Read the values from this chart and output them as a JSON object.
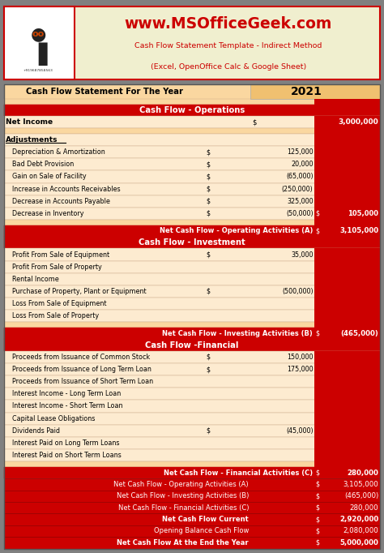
{
  "header_bg": "#808080",
  "header_logo_bg": "#ffffff",
  "website": "www.MSOfficeGeek.com",
  "subtitle1": "Cash Flow Statement Template - Indirect Method",
  "subtitle2": "(Excel, OpenOffice Calc & Google Sheet)",
  "phone": "+919687858563",
  "section_red": "#CC0000",
  "row_light": "#FAD7A0",
  "row_lighter": "#FDEBD0",
  "rows": [
    {
      "type": "title",
      "label": "Cash Flow Statement For The Year",
      "year": "2021"
    },
    {
      "type": "blank_light"
    },
    {
      "type": "section",
      "label": "Cash Flow - Operations"
    },
    {
      "type": "data",
      "label": "Net Income",
      "col1": "",
      "col2": "$",
      "col3": "3,000,000",
      "bold": true
    },
    {
      "type": "blank_light"
    },
    {
      "type": "header",
      "label": "Adjustments",
      "bold": true
    },
    {
      "type": "data_indent",
      "label": "Depreciation & Amortization",
      "col1": "$",
      "col2": "125,000",
      "col3": ""
    },
    {
      "type": "data_indent",
      "label": "Bad Debt Provision",
      "col1": "$",
      "col2": "20,000",
      "col3": ""
    },
    {
      "type": "data_indent",
      "label": "Gain on Sale of Facility",
      "col1": "$",
      "col2": "(65,000)",
      "col3": ""
    },
    {
      "type": "data_indent",
      "label": "Increase in Accounts Receivables",
      "col1": "$",
      "col2": "(250,000)",
      "col3": ""
    },
    {
      "type": "data_indent",
      "label": "Decrease in Accounts Payable",
      "col1": "$",
      "col2": "325,000",
      "col3": ""
    },
    {
      "type": "data_indent_last",
      "label": "Decrease in Inventory",
      "col1": "$",
      "col2": "(50,000)",
      "col3_dollar": "$",
      "col3": "105,000"
    },
    {
      "type": "blank_light"
    },
    {
      "type": "net_row",
      "label": "Net Cash Flow - Operating Activities (A)",
      "dollar": "$",
      "value": "3,105,000"
    },
    {
      "type": "section",
      "label": "Cash Flow - Investment"
    },
    {
      "type": "data_indent",
      "label": "Profit From Sale of Equipment",
      "col1": "$",
      "col2": "35,000",
      "col3": ""
    },
    {
      "type": "data_indent",
      "label": "Profit From Sale of Property",
      "col1": "",
      "col2": "",
      "col3": ""
    },
    {
      "type": "data_indent",
      "label": "Rental Income",
      "col1": "",
      "col2": "",
      "col3": ""
    },
    {
      "type": "data_indent",
      "label": "Purchase of Property, Plant or Equipment",
      "col1": "$",
      "col2": "(500,000)",
      "col3": ""
    },
    {
      "type": "data_indent",
      "label": "Loss From Sale of Equipment",
      "col1": "",
      "col2": "",
      "col3": ""
    },
    {
      "type": "data_indent",
      "label": "Loss From Sale of Property",
      "col1": "",
      "col2": "",
      "col3": ""
    },
    {
      "type": "blank_light"
    },
    {
      "type": "net_row",
      "label": "Net Cash Flow - Investing Activities (B)",
      "dollar": "$",
      "value": "(465,000)"
    },
    {
      "type": "section",
      "label": "Cash Flow -Financial"
    },
    {
      "type": "data_indent",
      "label": "Proceeds from Issuance of Common Stock",
      "col1": "$",
      "col2": "150,000",
      "col3": ""
    },
    {
      "type": "data_indent",
      "label": "Proceeds from Issuance of Long Term Loan",
      "col1": "$",
      "col2": "175,000",
      "col3": ""
    },
    {
      "type": "data_indent",
      "label": "Proceeds from Issuance of Short Term Loan",
      "col1": "",
      "col2": "",
      "col3": ""
    },
    {
      "type": "data_indent",
      "label": "Interest Income - Long Term Loan",
      "col1": "",
      "col2": "",
      "col3": ""
    },
    {
      "type": "data_indent",
      "label": "Interest Income - Short Term Loan",
      "col1": "",
      "col2": "",
      "col3": ""
    },
    {
      "type": "data_indent",
      "label": "Capital Lease Obligations",
      "col1": "",
      "col2": "",
      "col3": ""
    },
    {
      "type": "data_indent",
      "label": "Dividends Paid",
      "col1": "$",
      "col2": "(45,000)",
      "col3": ""
    },
    {
      "type": "data_indent",
      "label": "Interest Paid on Long Term Loans",
      "col1": "",
      "col2": "",
      "col3": ""
    },
    {
      "type": "data_indent",
      "label": "Interest Paid on Short Term Loans",
      "col1": "",
      "col2": "",
      "col3": ""
    },
    {
      "type": "blank_light"
    },
    {
      "type": "net_row",
      "label": "Net Cash Flow - Financial Activities (C)",
      "dollar": "$",
      "value": "280,000"
    },
    {
      "type": "summary_row",
      "label": "Net Cash Flow - Operating Activities (A)",
      "dollar": "$",
      "value": "3,105,000"
    },
    {
      "type": "summary_row",
      "label": "Net Cash Flow - Investing Activities (B)",
      "dollar": "$",
      "value": "(465,000)"
    },
    {
      "type": "summary_row",
      "label": "Net Cash Flow - Financial Activities (C)",
      "dollar": "$",
      "value": "280,000"
    },
    {
      "type": "summary_row_bold",
      "label": "Net Cash Flow Current",
      "dollar": "$",
      "value": "2,920,000"
    },
    {
      "type": "summary_row",
      "label": "Opening Balance Cash Flow",
      "dollar": "$",
      "value": "2,080,000"
    },
    {
      "type": "summary_row_bold",
      "label": "Net Cash Flow At the End the Year",
      "dollar": "$",
      "value": "5,000,000"
    }
  ]
}
